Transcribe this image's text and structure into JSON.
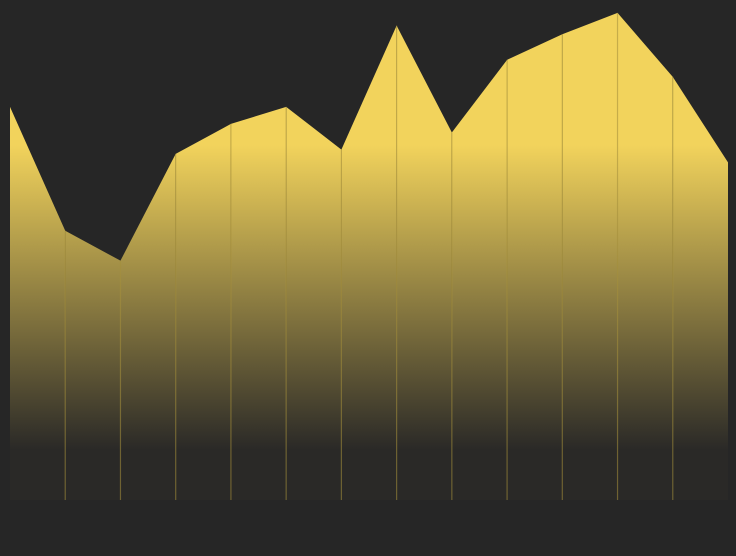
{
  "colors": {
    "background": "#262626",
    "area_top": "#f2d35c",
    "area_bottom": "#2a2927",
    "divider": "#a8913c"
  },
  "chart_data": {
    "type": "area",
    "title": "",
    "xlabel": "",
    "ylabel": "",
    "x": [
      0,
      1,
      2,
      3,
      4,
      5,
      6,
      7,
      8,
      9,
      10,
      11,
      12,
      13
    ],
    "series": [
      {
        "values": [
          92,
          63,
          56,
          81,
          88,
          92,
          82,
          111,
          86,
          103,
          109,
          114,
          99,
          79
        ]
      }
    ],
    "ylim": [
      0,
      117
    ],
    "grid": false,
    "legend": "none",
    "vertical_dividers": true
  }
}
